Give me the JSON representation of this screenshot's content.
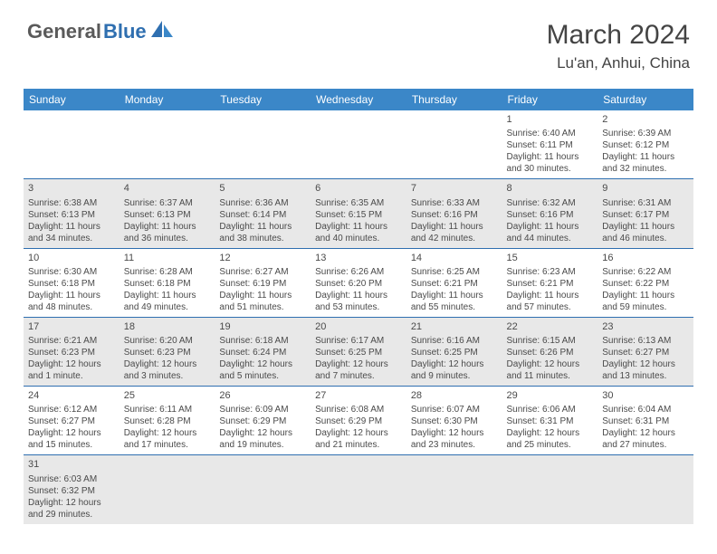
{
  "logo": {
    "part1": "General",
    "part2": "Blue"
  },
  "title": "March 2024",
  "location": "Lu'an, Anhui, China",
  "colors": {
    "header_bg": "#3b87c8",
    "border": "#2f6fb0",
    "alt_row": "#e8e8e8",
    "logo_gray": "#5a5a5a",
    "logo_blue": "#2f6fb0"
  },
  "dayHeaders": [
    "Sunday",
    "Monday",
    "Tuesday",
    "Wednesday",
    "Thursday",
    "Friday",
    "Saturday"
  ],
  "weeks": [
    {
      "alt": false,
      "days": [
        null,
        null,
        null,
        null,
        null,
        {
          "n": "1",
          "sr": "Sunrise: 6:40 AM",
          "ss": "Sunset: 6:11 PM",
          "dl": "Daylight: 11 hours and 30 minutes."
        },
        {
          "n": "2",
          "sr": "Sunrise: 6:39 AM",
          "ss": "Sunset: 6:12 PM",
          "dl": "Daylight: 11 hours and 32 minutes."
        }
      ]
    },
    {
      "alt": true,
      "days": [
        {
          "n": "3",
          "sr": "Sunrise: 6:38 AM",
          "ss": "Sunset: 6:13 PM",
          "dl": "Daylight: 11 hours and 34 minutes."
        },
        {
          "n": "4",
          "sr": "Sunrise: 6:37 AM",
          "ss": "Sunset: 6:13 PM",
          "dl": "Daylight: 11 hours and 36 minutes."
        },
        {
          "n": "5",
          "sr": "Sunrise: 6:36 AM",
          "ss": "Sunset: 6:14 PM",
          "dl": "Daylight: 11 hours and 38 minutes."
        },
        {
          "n": "6",
          "sr": "Sunrise: 6:35 AM",
          "ss": "Sunset: 6:15 PM",
          "dl": "Daylight: 11 hours and 40 minutes."
        },
        {
          "n": "7",
          "sr": "Sunrise: 6:33 AM",
          "ss": "Sunset: 6:16 PM",
          "dl": "Daylight: 11 hours and 42 minutes."
        },
        {
          "n": "8",
          "sr": "Sunrise: 6:32 AM",
          "ss": "Sunset: 6:16 PM",
          "dl": "Daylight: 11 hours and 44 minutes."
        },
        {
          "n": "9",
          "sr": "Sunrise: 6:31 AM",
          "ss": "Sunset: 6:17 PM",
          "dl": "Daylight: 11 hours and 46 minutes."
        }
      ]
    },
    {
      "alt": false,
      "days": [
        {
          "n": "10",
          "sr": "Sunrise: 6:30 AM",
          "ss": "Sunset: 6:18 PM",
          "dl": "Daylight: 11 hours and 48 minutes."
        },
        {
          "n": "11",
          "sr": "Sunrise: 6:28 AM",
          "ss": "Sunset: 6:18 PM",
          "dl": "Daylight: 11 hours and 49 minutes."
        },
        {
          "n": "12",
          "sr": "Sunrise: 6:27 AM",
          "ss": "Sunset: 6:19 PM",
          "dl": "Daylight: 11 hours and 51 minutes."
        },
        {
          "n": "13",
          "sr": "Sunrise: 6:26 AM",
          "ss": "Sunset: 6:20 PM",
          "dl": "Daylight: 11 hours and 53 minutes."
        },
        {
          "n": "14",
          "sr": "Sunrise: 6:25 AM",
          "ss": "Sunset: 6:21 PM",
          "dl": "Daylight: 11 hours and 55 minutes."
        },
        {
          "n": "15",
          "sr": "Sunrise: 6:23 AM",
          "ss": "Sunset: 6:21 PM",
          "dl": "Daylight: 11 hours and 57 minutes."
        },
        {
          "n": "16",
          "sr": "Sunrise: 6:22 AM",
          "ss": "Sunset: 6:22 PM",
          "dl": "Daylight: 11 hours and 59 minutes."
        }
      ]
    },
    {
      "alt": true,
      "days": [
        {
          "n": "17",
          "sr": "Sunrise: 6:21 AM",
          "ss": "Sunset: 6:23 PM",
          "dl": "Daylight: 12 hours and 1 minute."
        },
        {
          "n": "18",
          "sr": "Sunrise: 6:20 AM",
          "ss": "Sunset: 6:23 PM",
          "dl": "Daylight: 12 hours and 3 minutes."
        },
        {
          "n": "19",
          "sr": "Sunrise: 6:18 AM",
          "ss": "Sunset: 6:24 PM",
          "dl": "Daylight: 12 hours and 5 minutes."
        },
        {
          "n": "20",
          "sr": "Sunrise: 6:17 AM",
          "ss": "Sunset: 6:25 PM",
          "dl": "Daylight: 12 hours and 7 minutes."
        },
        {
          "n": "21",
          "sr": "Sunrise: 6:16 AM",
          "ss": "Sunset: 6:25 PM",
          "dl": "Daylight: 12 hours and 9 minutes."
        },
        {
          "n": "22",
          "sr": "Sunrise: 6:15 AM",
          "ss": "Sunset: 6:26 PM",
          "dl": "Daylight: 12 hours and 11 minutes."
        },
        {
          "n": "23",
          "sr": "Sunrise: 6:13 AM",
          "ss": "Sunset: 6:27 PM",
          "dl": "Daylight: 12 hours and 13 minutes."
        }
      ]
    },
    {
      "alt": false,
      "days": [
        {
          "n": "24",
          "sr": "Sunrise: 6:12 AM",
          "ss": "Sunset: 6:27 PM",
          "dl": "Daylight: 12 hours and 15 minutes."
        },
        {
          "n": "25",
          "sr": "Sunrise: 6:11 AM",
          "ss": "Sunset: 6:28 PM",
          "dl": "Daylight: 12 hours and 17 minutes."
        },
        {
          "n": "26",
          "sr": "Sunrise: 6:09 AM",
          "ss": "Sunset: 6:29 PM",
          "dl": "Daylight: 12 hours and 19 minutes."
        },
        {
          "n": "27",
          "sr": "Sunrise: 6:08 AM",
          "ss": "Sunset: 6:29 PM",
          "dl": "Daylight: 12 hours and 21 minutes."
        },
        {
          "n": "28",
          "sr": "Sunrise: 6:07 AM",
          "ss": "Sunset: 6:30 PM",
          "dl": "Daylight: 12 hours and 23 minutes."
        },
        {
          "n": "29",
          "sr": "Sunrise: 6:06 AM",
          "ss": "Sunset: 6:31 PM",
          "dl": "Daylight: 12 hours and 25 minutes."
        },
        {
          "n": "30",
          "sr": "Sunrise: 6:04 AM",
          "ss": "Sunset: 6:31 PM",
          "dl": "Daylight: 12 hours and 27 minutes."
        }
      ]
    },
    {
      "alt": true,
      "last": true,
      "days": [
        {
          "n": "31",
          "sr": "Sunrise: 6:03 AM",
          "ss": "Sunset: 6:32 PM",
          "dl": "Daylight: 12 hours and 29 minutes."
        },
        null,
        null,
        null,
        null,
        null,
        null
      ]
    }
  ]
}
